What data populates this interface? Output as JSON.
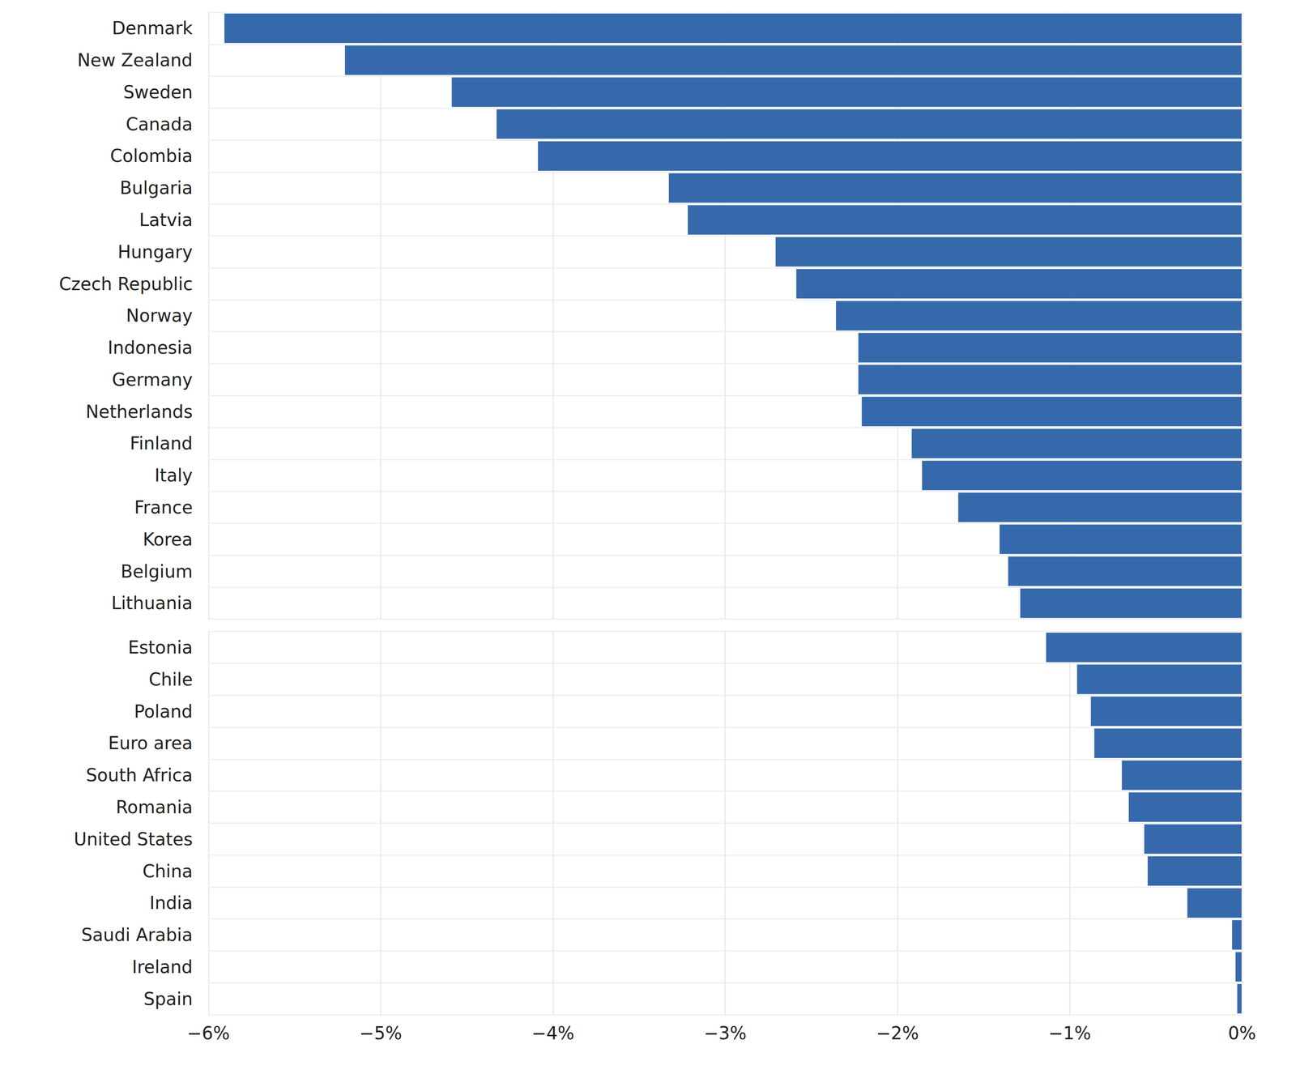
{
  "chart_data": [
    {
      "type": "bar",
      "orientation": "horizontal",
      "grid": true,
      "tick_labels": "y",
      "color": "#3569ac",
      "categories": [
        "Denmark",
        "New Zealand",
        "Sweden",
        "Canada",
        "Colombia",
        "Bulgaria",
        "Latvia",
        "Hungary",
        "Czech Republic",
        "Norway",
        "Indonesia",
        "Germany",
        "Netherlands",
        "Finland",
        "Italy",
        "France",
        "Korea",
        "Belgium",
        "Lithuania"
      ],
      "values": [
        -5.91,
        -5.21,
        -4.59,
        -4.33,
        -4.09,
        -3.33,
        -3.22,
        -2.71,
        -2.59,
        -2.36,
        -2.23,
        -2.23,
        -2.21,
        -1.92,
        -1.86,
        -1.65,
        -1.41,
        -1.36,
        -1.29
      ],
      "xlim": [
        -6,
        0
      ],
      "xticks": [
        {
          "value": -6,
          "label": "−6%"
        },
        {
          "value": -5,
          "label": "−5%"
        },
        {
          "value": -4,
          "label": "−4%"
        },
        {
          "value": -3,
          "label": "−3%"
        },
        {
          "value": -2,
          "label": "−2%"
        },
        {
          "value": -1,
          "label": "−1%"
        },
        {
          "value": 0,
          "label": "0%"
        }
      ]
    },
    {
      "type": "bar",
      "orientation": "horizontal",
      "grid": true,
      "color": "#3569ac",
      "categories": [
        "Estonia",
        "Chile",
        "Poland",
        "Euro area",
        "South Africa",
        "Romania",
        "United States",
        "China",
        "India",
        "Saudi Arabia",
        "Ireland",
        "Spain"
      ],
      "values": [
        -1.14,
        -0.96,
        -0.88,
        -0.86,
        -0.7,
        -0.66,
        -0.57,
        -0.55,
        -0.32,
        -0.06,
        -0.04,
        -0.03
      ],
      "xlim": [
        -6,
        0
      ],
      "xticks": [
        {
          "value": -6,
          "label": "−6%"
        },
        {
          "value": -5,
          "label": "−5%"
        },
        {
          "value": -4,
          "label": "−4%"
        },
        {
          "value": -3,
          "label": "−3%"
        },
        {
          "value": -2,
          "label": "−2%"
        },
        {
          "value": -1,
          "label": "−1%"
        },
        {
          "value": 0,
          "label": "0%"
        }
      ]
    }
  ]
}
